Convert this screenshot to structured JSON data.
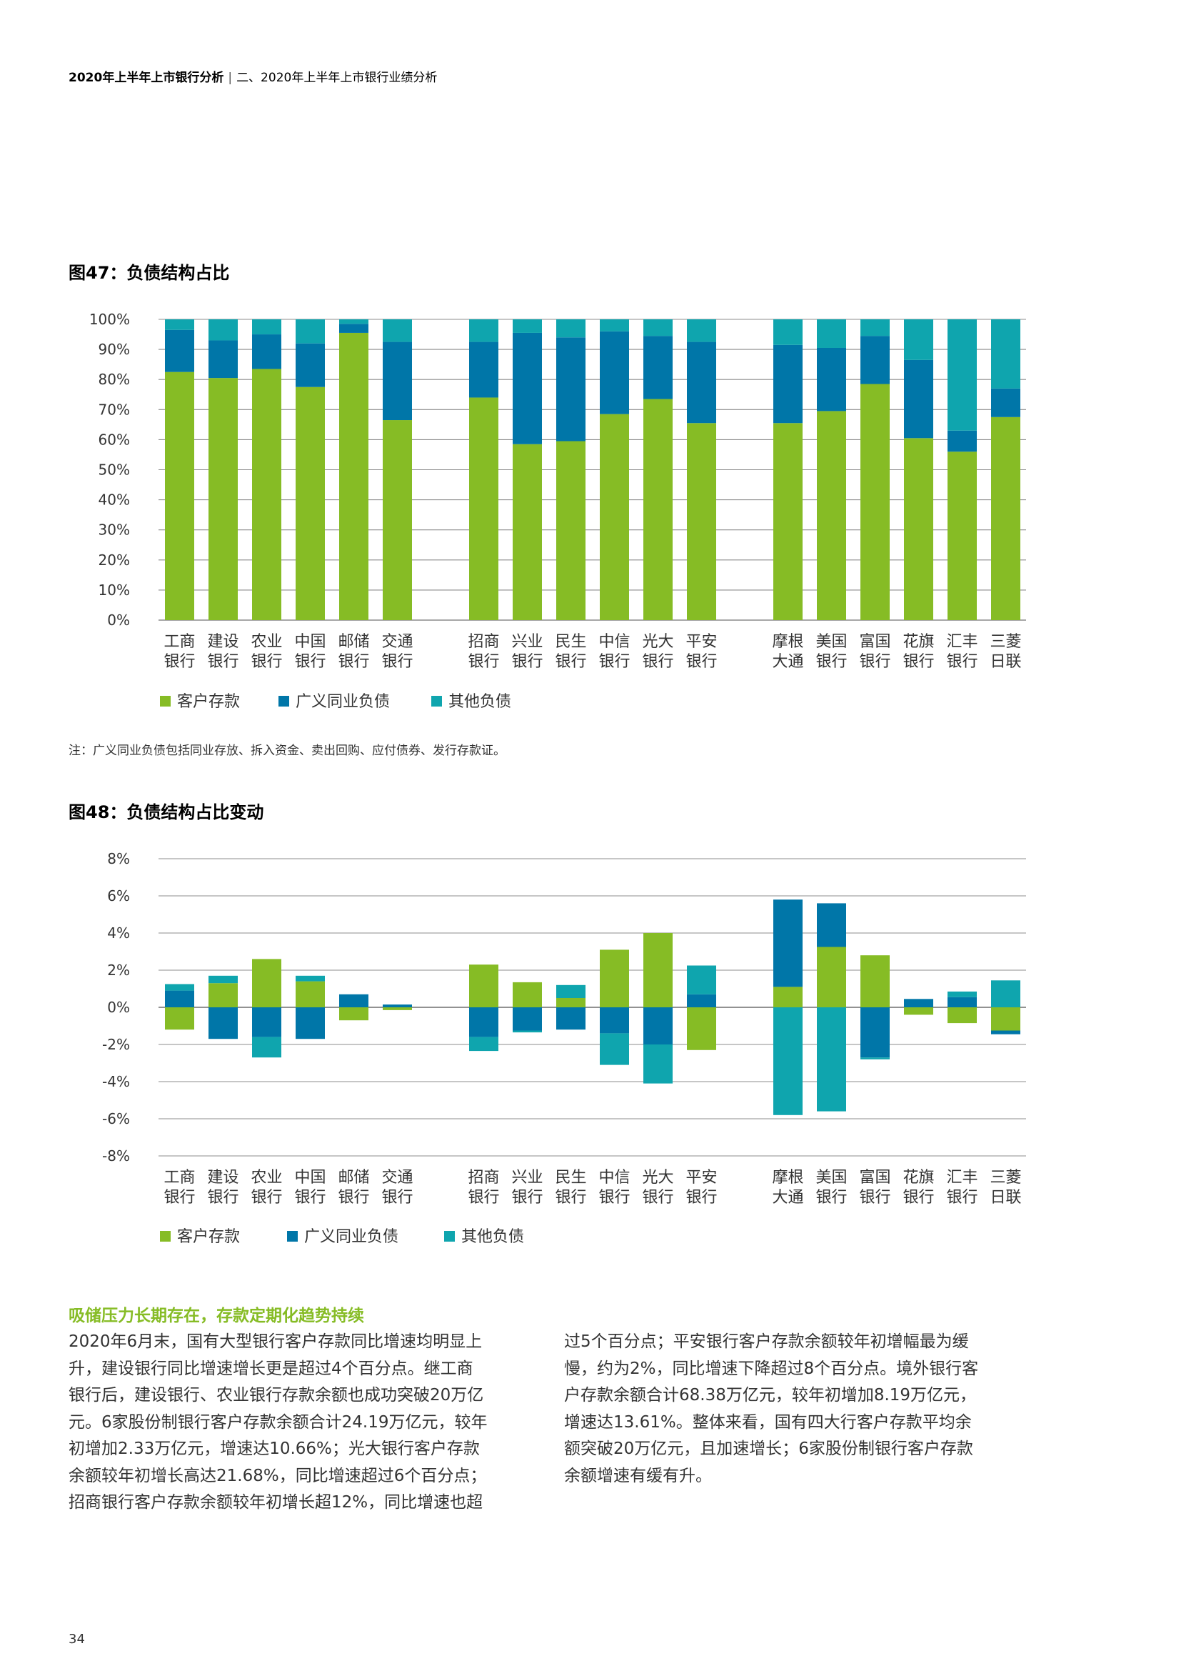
{
  "header": {
    "title": "2020年上半年上市银行分析",
    "separator": "|",
    "section": "二、2020年上半年上市银行业绩分析"
  },
  "colors": {
    "customer_deposits": "#86bc25",
    "interbank_liabilities": "#0076a8",
    "other_liabilities": "#0fa5ae",
    "grid": "#8c8c8c",
    "section_title": "#86bc25"
  },
  "fig47": {
    "title": "图47：负债结构占比",
    "note": "注：广义同业负债包括同业存放、拆入资金、卖出回购、应付债券、发行存款证。"
  },
  "fig48": {
    "title": "图48：负债结构占比变动"
  },
  "chart_data": [
    {
      "type": "bar",
      "stacked": true,
      "title": "图47：负债结构占比",
      "y_tick_labels": [
        "0%",
        "10%",
        "20%",
        "30%",
        "40%",
        "50%",
        "60%",
        "70%",
        "80%",
        "90%",
        "100%"
      ],
      "ylim": [
        0,
        100
      ],
      "grid": true,
      "legend": "bottom-left",
      "groups": [
        6,
        6,
        6
      ],
      "categories": [
        [
          "工商",
          "银行"
        ],
        [
          "建设",
          "银行"
        ],
        [
          "农业",
          "银行"
        ],
        [
          "中国",
          "银行"
        ],
        [
          "邮储",
          "银行"
        ],
        [
          "交通",
          "银行"
        ],
        [
          "招商",
          "银行"
        ],
        [
          "兴业",
          "银行"
        ],
        [
          "民生",
          "银行"
        ],
        [
          "中信",
          "银行"
        ],
        [
          "光大",
          "银行"
        ],
        [
          "平安",
          "银行"
        ],
        [
          "摩根",
          "大通"
        ],
        [
          "美国",
          "银行"
        ],
        [
          "富国",
          "银行"
        ],
        [
          "花旗",
          "银行"
        ],
        [
          "汇丰",
          "银行"
        ],
        [
          "三菱",
          "日联"
        ]
      ],
      "series": [
        {
          "name": "客户存款",
          "color": "#86bc25",
          "values": [
            82.5,
            80.5,
            83.5,
            77.5,
            95.5,
            66.5,
            74,
            58.5,
            59.5,
            68.5,
            73.5,
            65.5,
            65.5,
            69.5,
            78.5,
            60.5,
            56,
            67.5
          ]
        },
        {
          "name": "广义同业负债",
          "color": "#0076a8",
          "values": [
            14,
            12.5,
            11.5,
            14.5,
            3,
            26,
            18.5,
            37,
            34.5,
            27.5,
            21,
            27,
            26,
            21,
            16,
            26,
            7,
            9.5
          ]
        },
        {
          "name": "其他负债",
          "color": "#0fa5ae",
          "values": [
            3.5,
            7,
            5,
            8,
            1.5,
            7.5,
            7.5,
            4.5,
            6,
            4,
            5.5,
            7.5,
            8.5,
            9.5,
            5.5,
            13.5,
            37,
            23
          ]
        }
      ]
    },
    {
      "type": "bar",
      "stacked": true,
      "title": "图48：负债结构占比变动",
      "y_tick_labels": [
        "-8%",
        "-6%",
        "-4%",
        "-2%",
        "0%",
        "2%",
        "4%",
        "6%",
        "8%"
      ],
      "ylim": [
        -8,
        8
      ],
      "grid": true,
      "legend": "bottom-left",
      "groups": [
        6,
        6,
        6
      ],
      "categories": [
        [
          "工商",
          "银行"
        ],
        [
          "建设",
          "银行"
        ],
        [
          "农业",
          "银行"
        ],
        [
          "中国",
          "银行"
        ],
        [
          "邮储",
          "银行"
        ],
        [
          "交通",
          "银行"
        ],
        [
          "招商",
          "银行"
        ],
        [
          "兴业",
          "银行"
        ],
        [
          "民生",
          "银行"
        ],
        [
          "中信",
          "银行"
        ],
        [
          "光大",
          "银行"
        ],
        [
          "平安",
          "银行"
        ],
        [
          "摩根",
          "大通"
        ],
        [
          "美国",
          "银行"
        ],
        [
          "富国",
          "银行"
        ],
        [
          "花旗",
          "银行"
        ],
        [
          "汇丰",
          "银行"
        ],
        [
          "三菱",
          "日联"
        ]
      ],
      "series": [
        {
          "name": "客户存款",
          "color": "#86bc25",
          "values": [
            -1.2,
            1.3,
            2.6,
            1.4,
            -0.7,
            -0.15,
            2.3,
            1.35,
            0.5,
            3.1,
            4.0,
            -2.3,
            1.1,
            3.25,
            2.8,
            -0.4,
            -0.85,
            -1.25
          ]
        },
        {
          "name": "广义同业负债",
          "color": "#0076a8",
          "values": [
            0.9,
            -1.7,
            -1.6,
            -1.7,
            0.7,
            0.15,
            -1.6,
            -1.25,
            -1.2,
            -1.4,
            -2.0,
            0.7,
            4.7,
            2.35,
            -2.7,
            0.45,
            0.55,
            -0.2
          ]
        },
        {
          "name": "其他负债",
          "color": "#0fa5ae",
          "values": [
            0.35,
            0.4,
            -1.1,
            0.3,
            0.0,
            0.0,
            -0.75,
            -0.1,
            0.7,
            -1.7,
            -2.1,
            1.55,
            -5.8,
            -5.6,
            -0.1,
            0.0,
            0.3,
            1.45
          ]
        }
      ]
    }
  ],
  "body": {
    "section_title": "吸储压力长期存在，存款定期化趋势持续",
    "left_lines": [
      "2020年6月末，国有大型银行客户存款同比增速均明显上",
      "升，建设银行同比增速增长更是超过4个百分点。继工商",
      "银行后，建设银行、农业银行存款余额也成功突破20万亿",
      "元。6家股份制银行客户存款余额合计24.19万亿元，较年",
      "初增加2.33万亿元，增速达10.66%；光大银行客户存款",
      "余额较年初增长高达21.68%，同比增速超过6个百分点；",
      "招商银行客户存款余额较年初增长超12%，同比增速也超"
    ],
    "right_lines": [
      "过5个百分点；平安银行客户存款余额较年初增幅最为缓",
      "慢，约为2%，同比增速下降超过8个百分点。境外银行客",
      "户存款余额合计68.38万亿元，较年初增加8.19万亿元，",
      "增速达13.61%。整体来看，国有四大行客户存款平均余",
      "额突破20万亿元，且加速增长；6家股份制银行客户存款",
      "余额增速有缓有升。"
    ]
  },
  "page_number": "34"
}
